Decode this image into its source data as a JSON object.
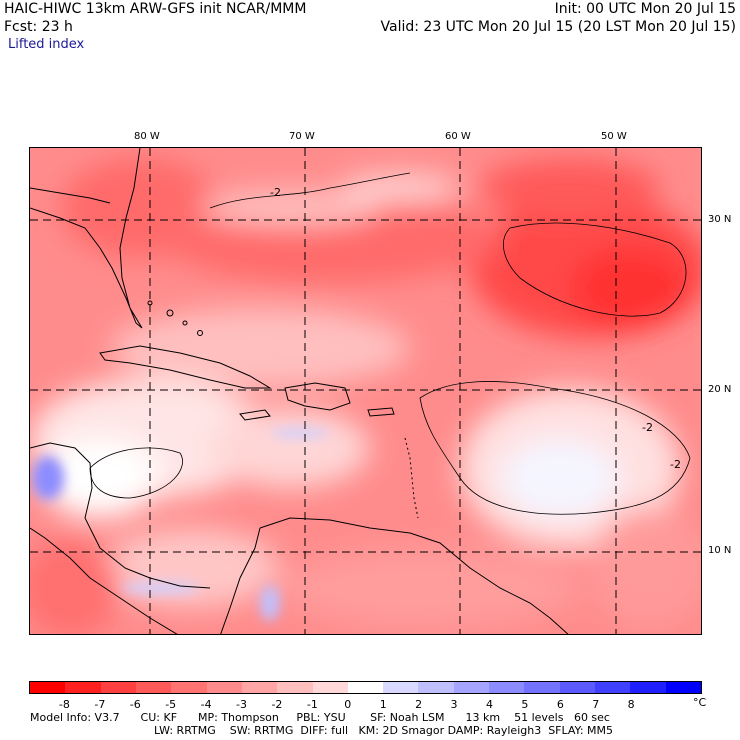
{
  "header": {
    "title_left": "HAIC-HIWC 13km ARW-GFS init   NCAR/MMM",
    "init": "Init: 00 UTC Mon 20 Jul 15",
    "fcst": "Fcst:   23 h",
    "valid": "Valid: 23 UTC Mon 20 Jul 15 (20 LST Mon 20 Jul 15)",
    "field": "Lifted index"
  },
  "map": {
    "lon_labels": [
      "80 W",
      "70 W",
      "60 W",
      "50 W"
    ],
    "lat_labels": [
      "30 N",
      "20 N",
      "10 N"
    ],
    "contour_label": "-2"
  },
  "colorbar": {
    "labels": [
      "-8",
      "-7",
      "-6",
      "-5",
      "-4",
      "-3",
      "-2",
      "-1",
      "0",
      "1",
      "2",
      "3",
      "4",
      "5",
      "6",
      "7",
      "8"
    ],
    "unit": "°C",
    "colors": [
      "#ff0000",
      "#ff2020",
      "#ff4040",
      "#ff5a5a",
      "#ff7373",
      "#ff8c8c",
      "#ffa5a5",
      "#ffbfbf",
      "#ffd9d9",
      "#ffffff",
      "#d9d9ff",
      "#bfbfff",
      "#a5a5ff",
      "#8c8cff",
      "#7373ff",
      "#5a5aff",
      "#4040ff",
      "#2020ff",
      "#0000ff"
    ]
  },
  "model_info": {
    "line1": "Model Info: V3.7      CU: KF      MP: Thompson     PBL: YSU       SF: Noah LSM      13 km    51 levels   60 sec",
    "line2": "LW: RRTMG    SW: RRTMG  DIFF: full   KM: 2D Smagor DAMP: Rayleigh3  SFLAY: MM5"
  }
}
